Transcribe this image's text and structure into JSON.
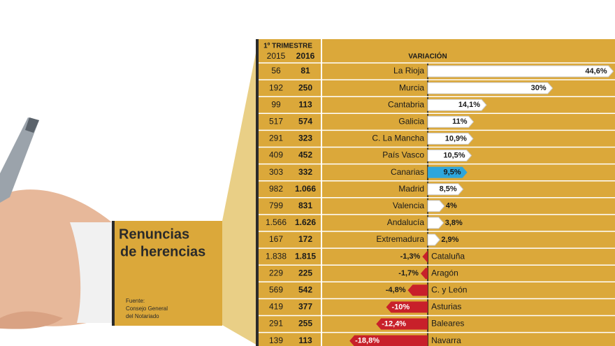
{
  "chart_data": {
    "type": "bar",
    "title_lines": [
      "Renuncias",
      "de herencias"
    ],
    "source_lines": [
      "Fuente:",
      "Consejo General",
      "del Notariado"
    ],
    "period_header": "1º TRIMESTRE",
    "column_headers": [
      "2015",
      "2016"
    ],
    "value_header": "VARIACIÓN",
    "categories": [
      "La Rioja",
      "Murcia",
      "Cantabria",
      "Galicia",
      "C. La Mancha",
      "País Vasco",
      "Canarias",
      "Madrid",
      "Valencia",
      "Andalucía",
      "Extremadura",
      "Cataluña",
      "Aragón",
      "C. y León",
      "Asturias",
      "Baleares",
      "Navarra"
    ],
    "col_2015": [
      "56",
      "192",
      "99",
      "517",
      "291",
      "409",
      "303",
      "982",
      "799",
      "1.566",
      "167",
      "1.838",
      "229",
      "569",
      "419",
      "291",
      "139"
    ],
    "col_2016": [
      "81",
      "250",
      "113",
      "574",
      "323",
      "452",
      "332",
      "1.066",
      "831",
      "1.626",
      "172",
      "1.815",
      "225",
      "542",
      "377",
      "255",
      "113"
    ],
    "values": [
      44.6,
      30,
      14.1,
      11,
      10.9,
      10.5,
      9.5,
      8.5,
      4,
      3.8,
      2.9,
      -1.3,
      -1.7,
      -4.8,
      -10,
      -12.4,
      -18.8
    ],
    "value_labels": [
      "44,6%",
      "30%",
      "14,1%",
      "11%",
      "10,9%",
      "10,5%",
      "9,5%",
      "8,5%",
      "4%",
      "3,8%",
      "2,9%",
      "-1,3%",
      "-1,7%",
      "-4,8%",
      "-10%",
      "-12,4%",
      "-18,8%"
    ],
    "colors": [
      "#ffffff",
      "#ffffff",
      "#ffffff",
      "#ffffff",
      "#ffffff",
      "#ffffff",
      "#2ea6dc",
      "#ffffff",
      "#ffffff",
      "#ffffff",
      "#ffffff",
      "#c8202a",
      "#c8202a",
      "#c8202a",
      "#c8202a",
      "#c8202a",
      "#c8202a"
    ],
    "xlim": [
      -20,
      45
    ]
  }
}
